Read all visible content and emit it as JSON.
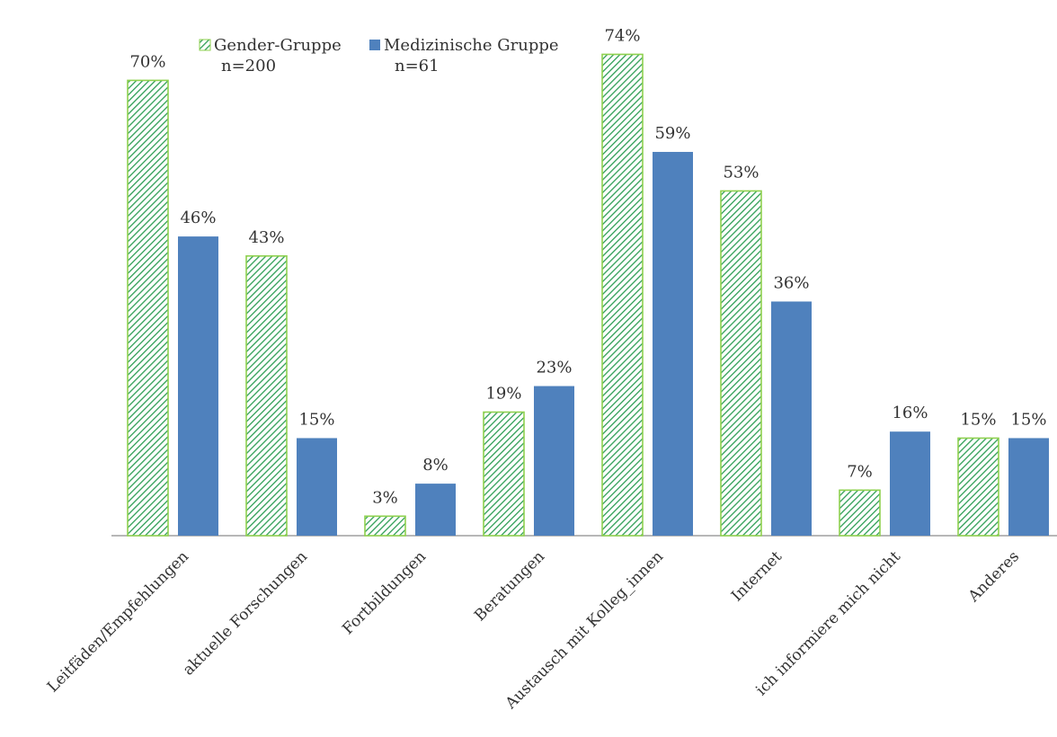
{
  "chart_data": {
    "type": "bar",
    "title": "",
    "xlabel": "",
    "ylabel": "",
    "ylim": [
      0,
      76
    ],
    "grid": false,
    "legend_position": "top-left",
    "categories": [
      "Leitfäden/Empfehlungen",
      "aktuelle Forschungen",
      "Fortbildungen",
      "Beratungen",
      "Austausch mit Kolleg_innen",
      "Internet",
      "ich informiere mich nicht",
      "Anderes"
    ],
    "series": [
      {
        "name": "Gender-Gruppe",
        "n_label": "n=200",
        "pattern": "green-hatched",
        "color": "#3cb371",
        "values": [
          70,
          43,
          3,
          19,
          74,
          53,
          7,
          15
        ],
        "labels": [
          "70%",
          "43%",
          "3%",
          "19%",
          "74%",
          "53%",
          "7%",
          "15%"
        ]
      },
      {
        "name": "Medizinische Gruppe",
        "n_label": "n=61",
        "pattern": "solid",
        "color": "#4f81bd",
        "values": [
          46,
          15,
          8,
          23,
          59,
          36,
          16,
          15
        ],
        "labels": [
          "46%",
          "15%",
          "8%",
          "23%",
          "59%",
          "36%",
          "16%",
          "15%"
        ]
      }
    ]
  }
}
